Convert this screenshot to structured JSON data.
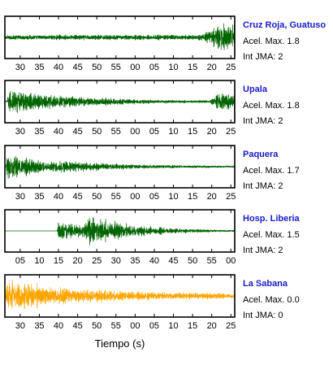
{
  "chart_data": {
    "type": "line",
    "xlabel": "Tiempo (s)",
    "panels": [
      {
        "station": "Cruz Roja, Guatuso",
        "accel_label": "Acel. Max. 1.8",
        "int_label": "Int JMA: 2",
        "color": "#006400",
        "tick_labels": [
          "30",
          "35",
          "40",
          "45",
          "50",
          "55",
          "00",
          "05",
          "10",
          "15",
          "20",
          "25"
        ],
        "tick_seconds": [
          30,
          35,
          40,
          45,
          50,
          55,
          60,
          65,
          70,
          75,
          80,
          85
        ],
        "xlim": [
          26,
          86
        ],
        "signal": {
          "noise_amplitude": 0.18,
          "wave_onsets": [
            {
              "t": 76.5,
              "amplitude": 0.95,
              "decay": 0.0,
              "rise": 8
            }
          ]
        }
      },
      {
        "station": "Upala",
        "accel_label": "Acel. Max. 1.8",
        "int_label": "Int JMA: 2",
        "color": "#006400",
        "tick_labels": [
          "30",
          "35",
          "40",
          "45",
          "50",
          "55",
          "00",
          "05",
          "10",
          "15",
          "20",
          "25"
        ],
        "tick_seconds": [
          30,
          35,
          40,
          45,
          50,
          55,
          60,
          65,
          70,
          75,
          80,
          85
        ],
        "xlim": [
          26,
          86
        ],
        "signal": {
          "noise_amplitude": 0.03,
          "wave_onsets": [
            {
              "t": 26.5,
              "amplitude": 0.9,
              "decay": 0.055,
              "rise": 0.5
            },
            {
              "t": 79.5,
              "amplitude": 0.55,
              "decay": 0.0,
              "rise": 2
            }
          ]
        }
      },
      {
        "station": "Paquera",
        "accel_label": "Acel. Max. 1.7",
        "int_label": "Int JMA: 2",
        "color": "#006400",
        "tick_labels": [
          "30",
          "35",
          "40",
          "45",
          "50",
          "55",
          "00",
          "05",
          "10",
          "15",
          "20",
          "25"
        ],
        "tick_seconds": [
          30,
          35,
          40,
          45,
          50,
          55,
          60,
          65,
          70,
          75,
          80,
          85
        ],
        "xlim": [
          26,
          86
        ],
        "signal": {
          "noise_amplitude": 0.02,
          "wave_onsets": [
            {
              "t": 26.3,
              "amplitude": 0.95,
              "decay": 0.09,
              "rise": 0.3
            },
            {
              "t": 38.5,
              "amplitude": 0.18,
              "decay": 0.03,
              "rise": 1
            }
          ]
        }
      },
      {
        "station": "Hosp. Liberia",
        "accel_label": "Acel. Max. 1.5",
        "int_label": "Int JMA: 2",
        "color": "#006400",
        "tick_labels": [
          "05",
          "10",
          "15",
          "20",
          "25",
          "30",
          "35",
          "40",
          "45",
          "50",
          "55",
          "00"
        ],
        "tick_seconds": [
          5,
          10,
          15,
          20,
          25,
          30,
          35,
          40,
          45,
          50,
          55,
          60
        ],
        "xlim": [
          1,
          61
        ],
        "signal": {
          "noise_amplitude": 0.0,
          "wave_onsets": [
            {
              "t": 14.6,
              "amplitude": 0.8,
              "decay": 0.08,
              "rise": 0.4
            },
            {
              "t": 21.5,
              "amplitude": 0.7,
              "decay": 0.075,
              "rise": 1.5
            }
          ]
        }
      },
      {
        "station": "La Sabana",
        "accel_label": "Acel. Max. 0.0",
        "int_label": "Int JMA: 0",
        "color": "#ffa500",
        "tick_labels": [
          "30",
          "35",
          "40",
          "45",
          "50",
          "55",
          "00",
          "05",
          "10",
          "15",
          "20",
          "25"
        ],
        "tick_seconds": [
          30,
          35,
          40,
          45,
          50,
          55,
          60,
          65,
          70,
          75,
          80,
          85
        ],
        "xlim": [
          26,
          86
        ],
        "signal": {
          "noise_amplitude": 0.15,
          "wave_onsets": [
            {
              "t": 26.2,
              "amplitude": 0.9,
              "decay": 0.05,
              "rise": 0.3
            }
          ]
        }
      }
    ]
  }
}
